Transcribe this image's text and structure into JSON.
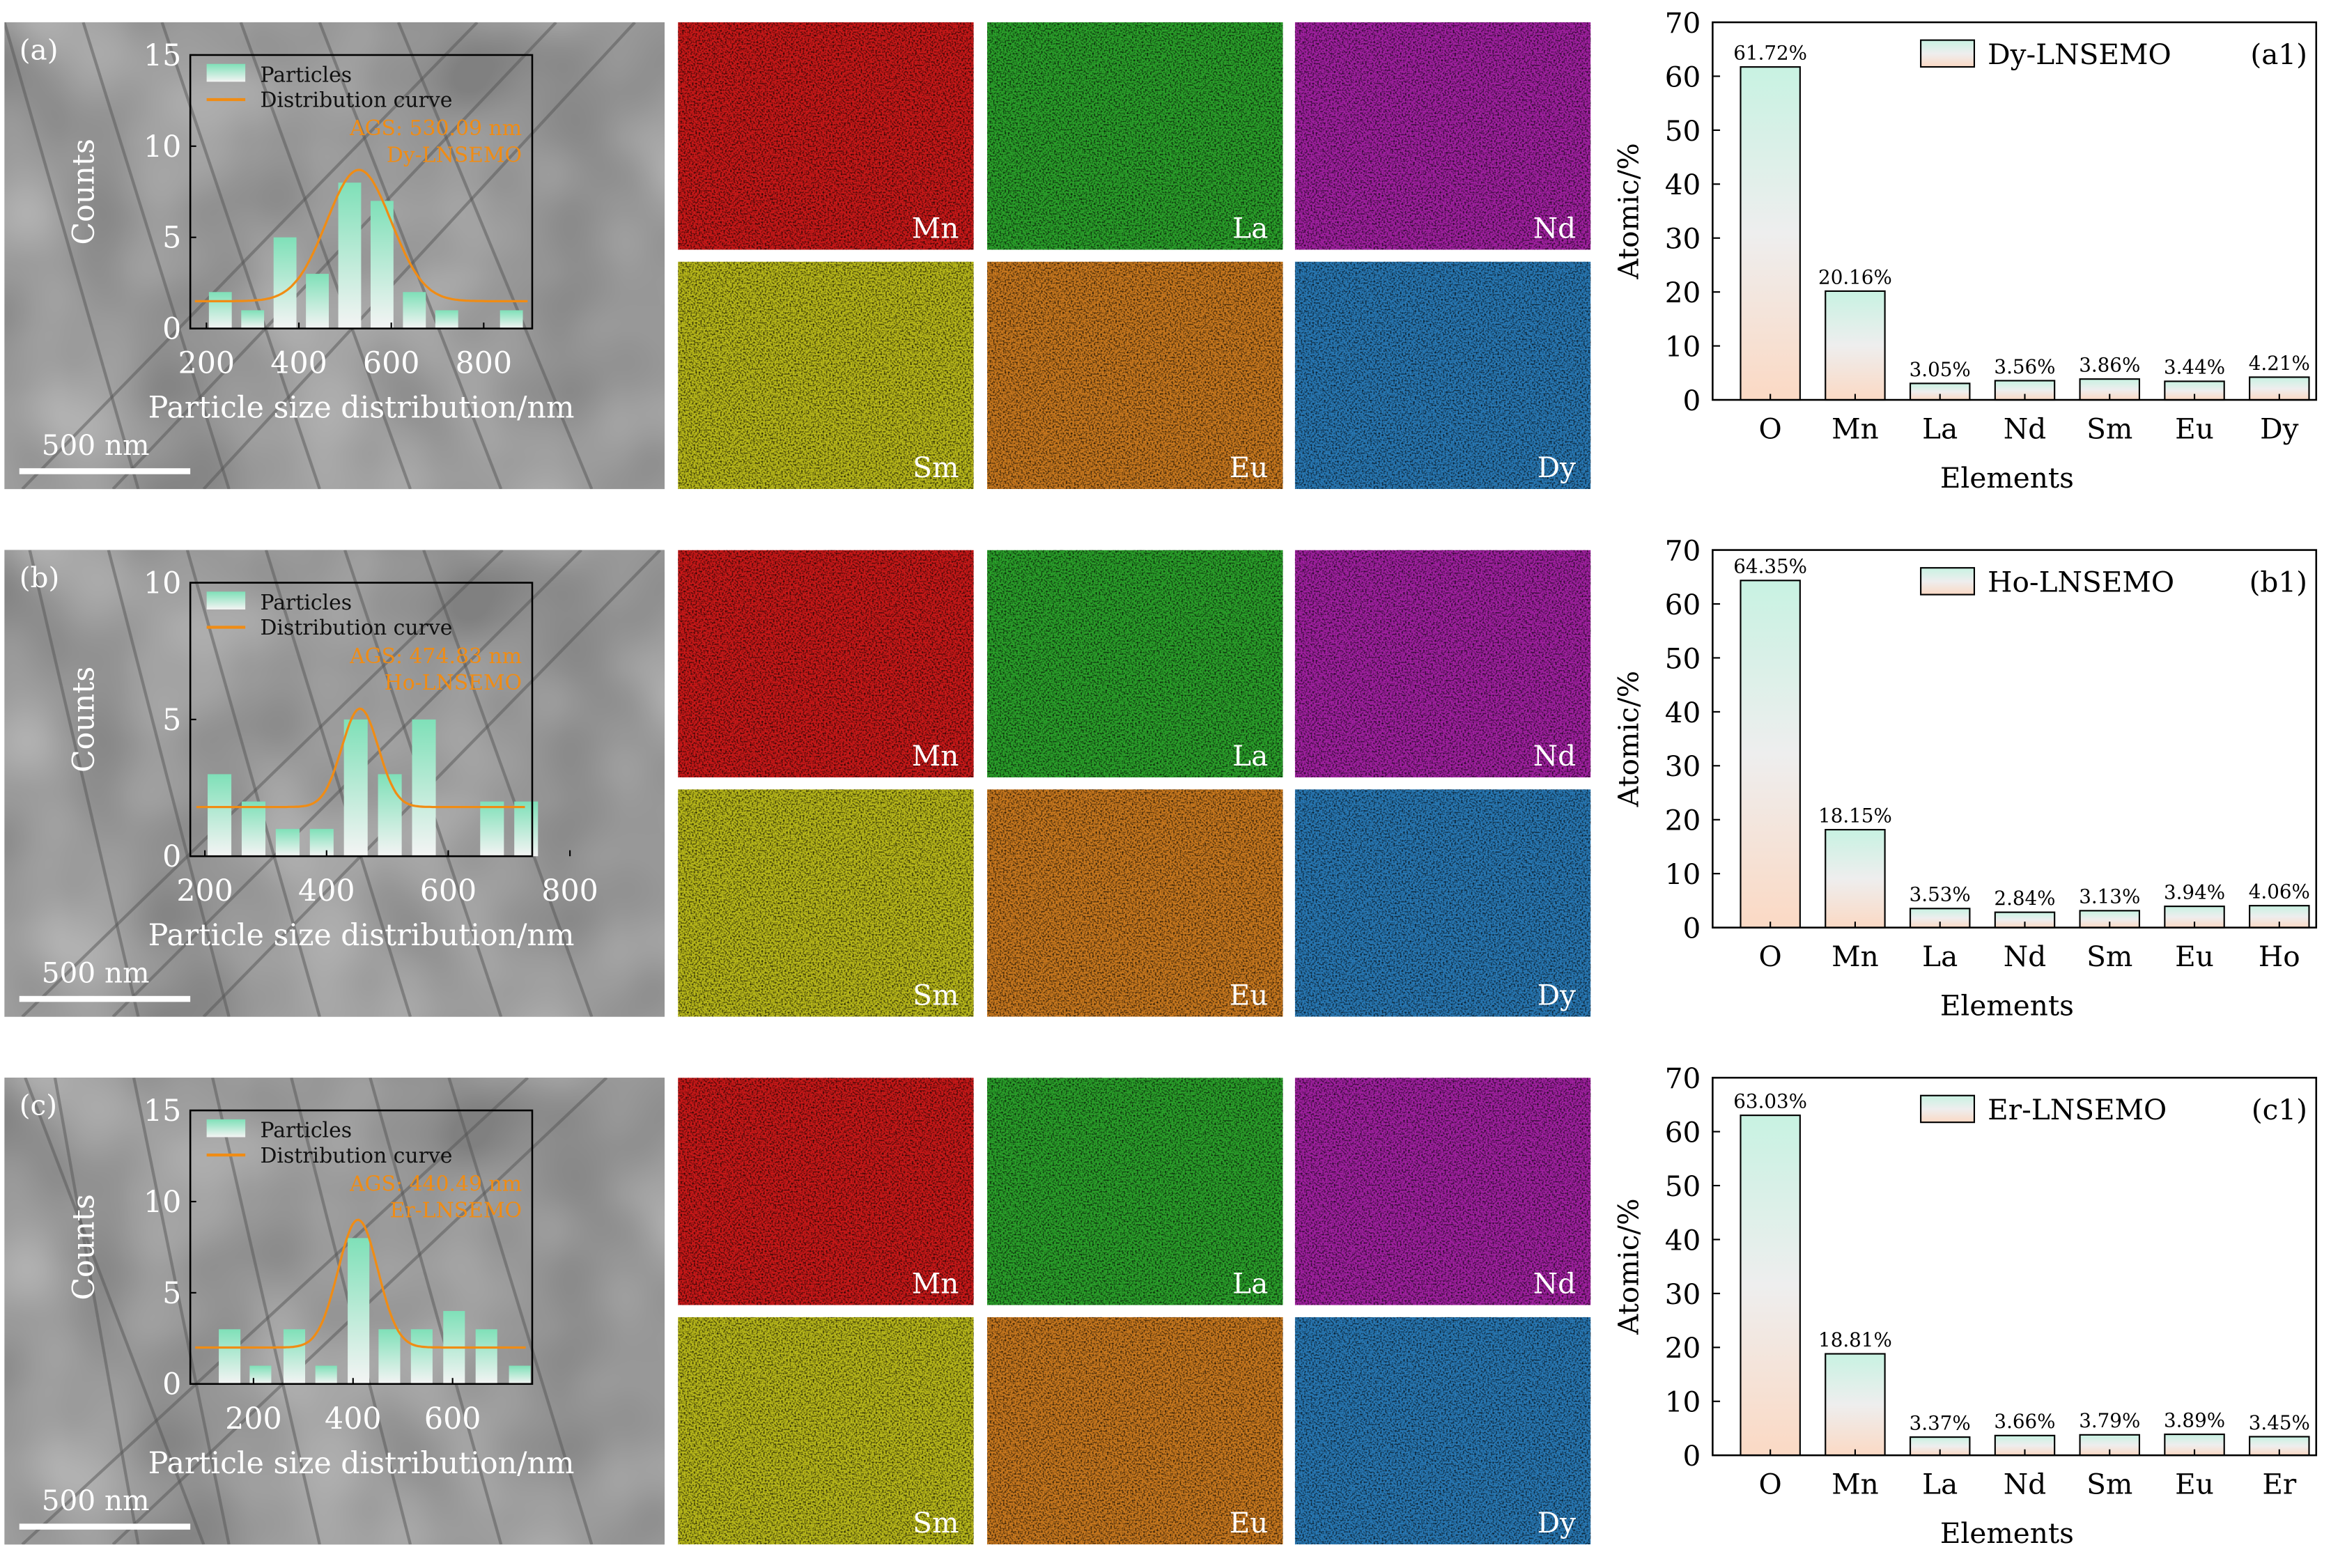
{
  "panels": [
    {
      "label": "(a)",
      "material": "Dy-LNSEMO",
      "sub_label": "(a1)",
      "ags": "AGS: 530.09 nm",
      "scale_bar": "500 nm",
      "hist": {
        "xticks": [
          200,
          400,
          600,
          800
        ],
        "yticks": [
          0,
          5,
          10,
          15
        ],
        "ylim": [
          0,
          15
        ],
        "xlim": [
          165,
          905
        ],
        "bin_width": 66,
        "centers": [
          230,
          300,
          370,
          440,
          510,
          580,
          650,
          720,
          790,
          860
        ],
        "counts": [
          2,
          1,
          5,
          3,
          8,
          7,
          2,
          1,
          0,
          1
        ],
        "curve": {
          "mean": 530,
          "sigma": 70,
          "amp": 7.2,
          "base": 1.5
        }
      },
      "maps": [
        "Mn",
        "La",
        "Nd",
        "Sm",
        "Eu",
        "Dy"
      ],
      "bars": {
        "categories": [
          "O",
          "Mn",
          "La",
          "Nd",
          "Sm",
          "Eu",
          "Dy"
        ],
        "values": [
          61.72,
          20.16,
          3.05,
          3.56,
          3.86,
          3.44,
          4.21
        ],
        "labels": [
          "61.72%",
          "20.16%",
          "3.05%",
          "3.56%",
          "3.86%",
          "3.44%",
          "4.21%"
        ]
      }
    },
    {
      "label": "(b)",
      "material": "Ho-LNSEMO",
      "sub_label": "(b1)",
      "ags": "AGS: 474.83 nm",
      "scale_bar": "500 nm",
      "hist": {
        "xticks": [
          200,
          400,
          600,
          800
        ],
        "yticks": [
          0,
          5,
          10
        ],
        "ylim": [
          0,
          10
        ],
        "xlim": [
          176,
          738
        ],
        "bin_width": 52,
        "centers": [
          224,
          280,
          336,
          392,
          448,
          504,
          560,
          616,
          672,
          728
        ],
        "counts": [
          3,
          2,
          1,
          1,
          5,
          3,
          5,
          0,
          2,
          2
        ],
        "curve": {
          "mean": 455,
          "sigma": 30,
          "amp": 3.6,
          "base": 1.8
        }
      },
      "maps": [
        "Mn",
        "La",
        "Nd",
        "Sm",
        "Eu",
        "Dy"
      ],
      "bars": {
        "categories": [
          "O",
          "Mn",
          "La",
          "Nd",
          "Sm",
          "Eu",
          "Ho"
        ],
        "values": [
          64.35,
          18.15,
          3.53,
          2.84,
          3.13,
          3.94,
          4.06
        ],
        "labels": [
          "64.35%",
          "18.15%",
          "3.53%",
          "2.84%",
          "3.13%",
          "3.94%",
          "4.06%"
        ]
      }
    },
    {
      "label": "(c)",
      "material": "Er-LNSEMO",
      "sub_label": "(c1)",
      "ags": "AGS: 440.49 nm",
      "scale_bar": "500 nm",
      "hist": {
        "xticks": [
          200,
          400,
          600
        ],
        "yticks": [
          0,
          5,
          10,
          15
        ],
        "ylim": [
          0,
          15
        ],
        "xlim": [
          73,
          760
        ],
        "bin_width": 58,
        "centers": [
          152,
          214,
          282,
          346,
          411,
          473,
          538,
          603,
          668,
          735
        ],
        "counts": [
          3,
          1,
          3,
          1,
          8,
          3,
          3,
          4,
          3,
          1
        ],
        "curve": {
          "mean": 410,
          "sigma": 40,
          "amp": 7,
          "base": 2
        }
      },
      "maps": [
        "Mn",
        "La",
        "Nd",
        "Sm",
        "Eu",
        "Dy"
      ],
      "bars": {
        "categories": [
          "O",
          "Mn",
          "La",
          "Nd",
          "Sm",
          "Eu",
          "Er"
        ],
        "values": [
          63.03,
          18.81,
          3.37,
          3.66,
          3.79,
          3.89,
          3.45
        ],
        "labels": [
          "63.03%",
          "18.81%",
          "3.37%",
          "3.66%",
          "3.79%",
          "3.89%",
          "3.45%"
        ]
      }
    }
  ],
  "common": {
    "hist_xlabel": "Particle size distribution/nm",
    "hist_ylabel": "Counts",
    "legend_particles": "Particles",
    "legend_curve": "Distribution curve",
    "bar_xlabel": "Elements",
    "bar_ylabel": "Atomic/%",
    "bar_ylim": [
      0,
      70
    ],
    "bar_yticks": [
      0,
      10,
      20,
      30,
      40,
      50,
      60,
      70
    ]
  },
  "colors": {
    "Mn": "#c81818",
    "La": "#2aa02a",
    "Nd": "#a020a0",
    "Sm": "#b8b81a",
    "Eu": "#c8781e",
    "Dy": "#2878b4",
    "curve": "#f08c14",
    "ags_text": "#f08c14"
  },
  "chart_data": [
    {
      "type": "bar",
      "title": "Dy-LNSEMO (a1)",
      "categories": [
        "O",
        "Mn",
        "La",
        "Nd",
        "Sm",
        "Eu",
        "Dy"
      ],
      "values": [
        61.72,
        20.16,
        3.05,
        3.56,
        3.86,
        3.44,
        4.21
      ],
      "xlabel": "Elements",
      "ylabel": "Atomic/%",
      "ylim": [
        0,
        70
      ]
    },
    {
      "type": "bar",
      "title": "Ho-LNSEMO (b1)",
      "categories": [
        "O",
        "Mn",
        "La",
        "Nd",
        "Sm",
        "Eu",
        "Ho"
      ],
      "values": [
        64.35,
        18.15,
        3.53,
        2.84,
        3.13,
        3.94,
        4.06
      ],
      "xlabel": "Elements",
      "ylabel": "Atomic/%",
      "ylim": [
        0,
        70
      ]
    },
    {
      "type": "bar",
      "title": "Er-LNSEMO (c1)",
      "categories": [
        "O",
        "Mn",
        "La",
        "Nd",
        "Sm",
        "Eu",
        "Er"
      ],
      "values": [
        63.03,
        18.81,
        3.37,
        3.66,
        3.79,
        3.89,
        3.45
      ],
      "xlabel": "Elements",
      "ylabel": "Atomic/%",
      "ylim": [
        0,
        70
      ]
    }
  ]
}
